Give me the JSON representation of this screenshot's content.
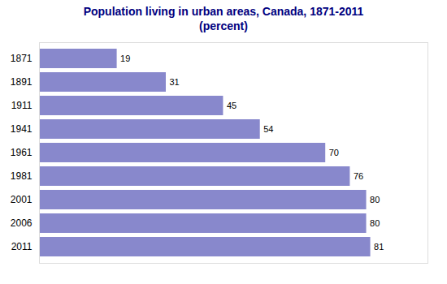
{
  "chart_data": {
    "type": "bar",
    "orientation": "horizontal",
    "title": "Population living in urban areas, Canada, 1871-2011",
    "subtitle": "(percent)",
    "categories": [
      "1871",
      "1891",
      "1911",
      "1941",
      "1961",
      "1981",
      "2001",
      "2006",
      "2011"
    ],
    "values": [
      19,
      31,
      45,
      54,
      70,
      76,
      80,
      80,
      81
    ],
    "color": "#8888cc",
    "xlim": [
      0,
      95
    ],
    "data_labels": true,
    "tick_labels": "y",
    "grid": false
  }
}
